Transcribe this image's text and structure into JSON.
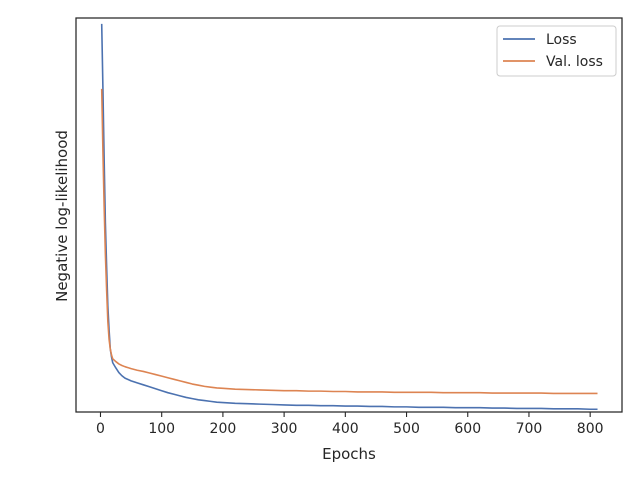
{
  "chart_data": {
    "type": "line",
    "title": "",
    "xlabel": "Epochs",
    "ylabel": "Negative log-likelihood",
    "xlim": [
      -40,
      852
    ],
    "ylim": [
      0,
      1
    ],
    "xticks": [
      0,
      100,
      200,
      300,
      400,
      500,
      600,
      700,
      800
    ],
    "yticks_labeled": false,
    "grid": false,
    "legend_position": "top-right",
    "series": [
      {
        "name": "Loss",
        "color": "#4c72b0",
        "x": [
          2,
          4,
          6,
          8,
          10,
          12,
          14,
          16,
          18,
          20,
          25,
          30,
          35,
          40,
          50,
          60,
          70,
          80,
          90,
          100,
          110,
          120,
          130,
          140,
          150,
          160,
          170,
          180,
          190,
          200,
          220,
          240,
          260,
          280,
          300,
          320,
          340,
          360,
          380,
          400,
          420,
          440,
          460,
          480,
          500,
          520,
          540,
          560,
          580,
          600,
          620,
          640,
          660,
          680,
          700,
          720,
          740,
          760,
          780,
          800,
          812
        ],
        "y": [
          0.985,
          0.82,
          0.64,
          0.48,
          0.37,
          0.27,
          0.21,
          0.16,
          0.14,
          0.125,
          0.112,
          0.1,
          0.092,
          0.086,
          0.079,
          0.074,
          0.069,
          0.064,
          0.059,
          0.054,
          0.049,
          0.045,
          0.041,
          0.037,
          0.034,
          0.031,
          0.029,
          0.027,
          0.025,
          0.024,
          0.022,
          0.021,
          0.02,
          0.019,
          0.018,
          0.017,
          0.017,
          0.016,
          0.016,
          0.015,
          0.015,
          0.014,
          0.014,
          0.013,
          0.013,
          0.012,
          0.012,
          0.012,
          0.011,
          0.011,
          0.011,
          0.01,
          0.01,
          0.009,
          0.009,
          0.009,
          0.008,
          0.008,
          0.008,
          0.007,
          0.007
        ]
      },
      {
        "name": "Val. loss",
        "color": "#dd8452",
        "x": [
          2,
          4,
          6,
          8,
          10,
          12,
          14,
          16,
          18,
          20,
          25,
          30,
          35,
          40,
          50,
          60,
          70,
          80,
          90,
          100,
          110,
          120,
          130,
          140,
          150,
          160,
          170,
          180,
          190,
          200,
          220,
          240,
          260,
          280,
          300,
          320,
          340,
          360,
          380,
          400,
          420,
          440,
          460,
          480,
          500,
          520,
          540,
          560,
          580,
          600,
          620,
          640,
          660,
          680,
          700,
          720,
          740,
          760,
          780,
          800,
          812
        ],
        "y": [
          0.82,
          0.66,
          0.52,
          0.4,
          0.31,
          0.23,
          0.185,
          0.16,
          0.145,
          0.135,
          0.128,
          0.122,
          0.118,
          0.115,
          0.11,
          0.106,
          0.103,
          0.099,
          0.095,
          0.091,
          0.087,
          0.083,
          0.079,
          0.075,
          0.071,
          0.068,
          0.065,
          0.063,
          0.061,
          0.06,
          0.058,
          0.057,
          0.056,
          0.055,
          0.054,
          0.054,
          0.053,
          0.053,
          0.052,
          0.052,
          0.051,
          0.051,
          0.051,
          0.05,
          0.05,
          0.05,
          0.05,
          0.049,
          0.049,
          0.049,
          0.049,
          0.048,
          0.048,
          0.048,
          0.048,
          0.048,
          0.047,
          0.047,
          0.047,
          0.047,
          0.047
        ]
      }
    ]
  }
}
